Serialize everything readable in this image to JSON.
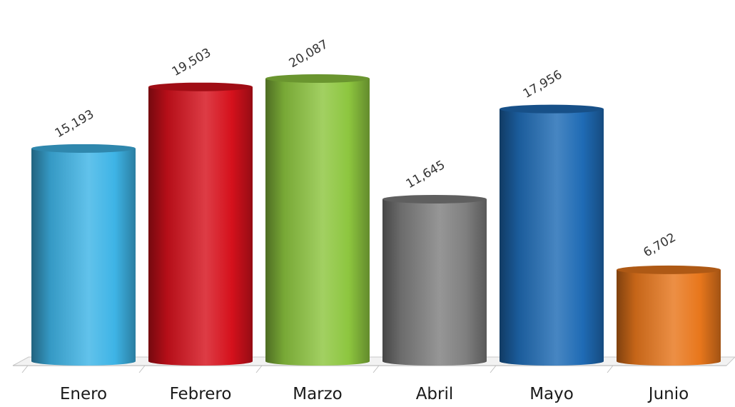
{
  "chart_data": {
    "type": "bar",
    "categories": [
      "Enero",
      "Febrero",
      "Marzo",
      "Abril",
      "Mayo",
      "Junio"
    ],
    "values": [
      15193,
      19503,
      20087,
      11645,
      17956,
      6702
    ],
    "value_labels": [
      "15,193",
      "19,503",
      "20,087",
      "11,645",
      "17,956",
      "6,702"
    ],
    "colors": [
      "#3eb4e6",
      "#d5111c",
      "#8dc63f",
      "#7f7f7f",
      "#1f6bb5",
      "#e8771c"
    ],
    "ylim": [
      0,
      20087
    ],
    "grid": false,
    "legend": "none"
  }
}
